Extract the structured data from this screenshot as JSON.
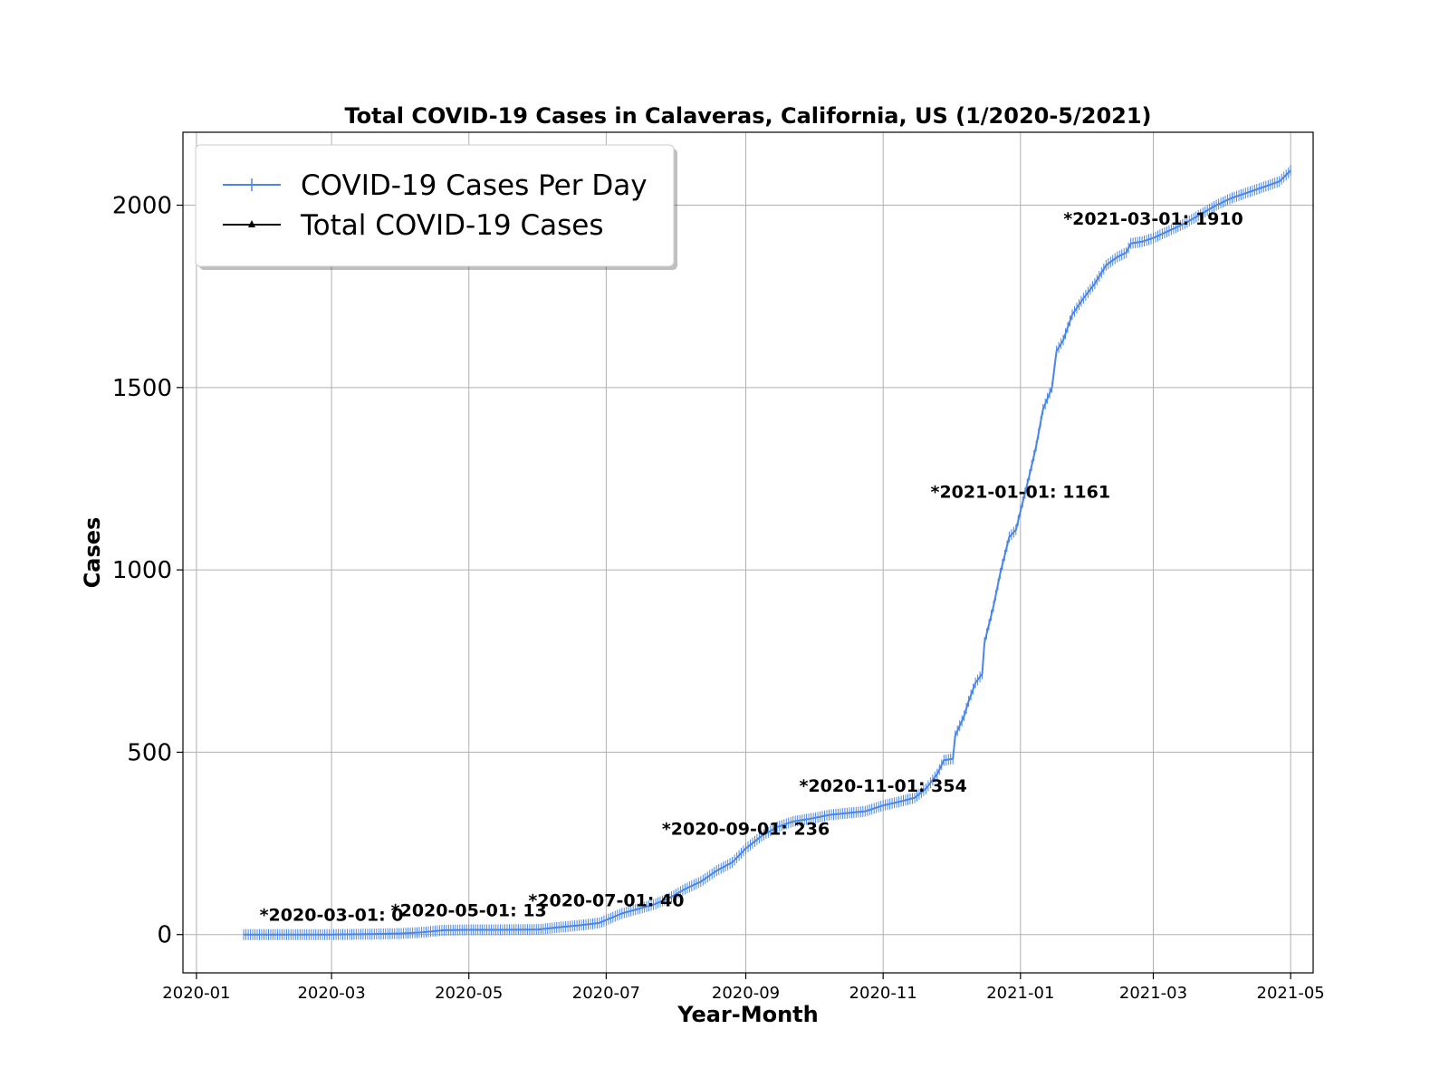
{
  "chart_data": {
    "type": "line",
    "title": "Total COVID-19 Cases in Calaveras, California, US (1/2020-5/2021)",
    "xlabel": "Year-Month",
    "ylabel": "Cases",
    "xlim": [
      "2019-12-26",
      "2021-05-11"
    ],
    "ylim": [
      -105,
      2200
    ],
    "grid": true,
    "legend_position": "top-left",
    "x_ticks": [
      "2020-01",
      "2020-03",
      "2020-05",
      "2020-07",
      "2020-09",
      "2020-11",
      "2021-01",
      "2021-03",
      "2021-05"
    ],
    "y_ticks": [
      0,
      500,
      1000,
      1500,
      2000
    ],
    "series": [
      {
        "name": "COVID-19 Cases Per Day",
        "color": "#4a86e8",
        "marker": "plus",
        "points": [
          [
            "2020-01-22",
            0
          ],
          [
            "2020-02-15",
            0
          ],
          [
            "2020-03-01",
            0
          ],
          [
            "2020-03-15",
            1
          ],
          [
            "2020-03-25",
            2
          ],
          [
            "2020-04-01",
            3
          ],
          [
            "2020-04-10",
            6
          ],
          [
            "2020-04-20",
            12
          ],
          [
            "2020-05-01",
            13
          ],
          [
            "2020-05-15",
            13
          ],
          [
            "2020-06-01",
            14
          ],
          [
            "2020-06-10",
            20
          ],
          [
            "2020-06-20",
            26
          ],
          [
            "2020-06-28",
            32
          ],
          [
            "2020-07-01",
            40
          ],
          [
            "2020-07-08",
            58
          ],
          [
            "2020-07-15",
            70
          ],
          [
            "2020-07-22",
            82
          ],
          [
            "2020-07-29",
            100
          ],
          [
            "2020-08-05",
            125
          ],
          [
            "2020-08-12",
            145
          ],
          [
            "2020-08-19",
            175
          ],
          [
            "2020-08-26",
            198
          ],
          [
            "2020-09-01",
            236
          ],
          [
            "2020-09-08",
            270
          ],
          [
            "2020-09-15",
            295
          ],
          [
            "2020-09-22",
            310
          ],
          [
            "2020-09-30",
            318
          ],
          [
            "2020-10-08",
            328
          ],
          [
            "2020-10-16",
            333
          ],
          [
            "2020-10-24",
            338
          ],
          [
            "2020-11-01",
            354
          ],
          [
            "2020-11-08",
            364
          ],
          [
            "2020-11-15",
            375
          ],
          [
            "2020-11-20",
            400
          ],
          [
            "2020-11-25",
            440
          ],
          [
            "2020-11-28",
            478
          ],
          [
            "2020-12-02",
            482
          ],
          [
            "2020-12-03",
            545
          ],
          [
            "2020-12-07",
            600
          ],
          [
            "2020-12-09",
            640
          ],
          [
            "2020-12-12",
            690
          ],
          [
            "2020-12-15",
            715
          ],
          [
            "2020-12-16",
            800
          ],
          [
            "2020-12-20",
            900
          ],
          [
            "2020-12-23",
            990
          ],
          [
            "2020-12-27",
            1090
          ],
          [
            "2020-12-30",
            1110
          ],
          [
            "2021-01-01",
            1161
          ],
          [
            "2021-01-05",
            1260
          ],
          [
            "2021-01-08",
            1340
          ],
          [
            "2021-01-11",
            1440
          ],
          [
            "2021-01-15",
            1500
          ],
          [
            "2021-01-17",
            1600
          ],
          [
            "2021-01-20",
            1630
          ],
          [
            "2021-01-24",
            1700
          ],
          [
            "2021-01-29",
            1745
          ],
          [
            "2021-02-03",
            1785
          ],
          [
            "2021-02-08",
            1835
          ],
          [
            "2021-02-13",
            1858
          ],
          [
            "2021-02-17",
            1870
          ],
          [
            "2021-02-19",
            1895
          ],
          [
            "2021-02-24",
            1900
          ],
          [
            "2021-03-01",
            1910
          ],
          [
            "2021-03-08",
            1930
          ],
          [
            "2021-03-15",
            1950
          ],
          [
            "2021-03-22",
            1975
          ],
          [
            "2021-03-29",
            2000
          ],
          [
            "2021-04-05",
            2020
          ],
          [
            "2021-04-12",
            2035
          ],
          [
            "2021-04-19",
            2050
          ],
          [
            "2021-04-26",
            2065
          ],
          [
            "2021-05-01",
            2095
          ]
        ]
      },
      {
        "name": "Total COVID-19 Cases",
        "color": "#000000",
        "marker": "triangle",
        "points": []
      }
    ],
    "annotations": [
      {
        "text": "*2020-03-01: 0",
        "x": "2020-03-01",
        "y": 0
      },
      {
        "text": "*2020-05-01: 13",
        "x": "2020-05-01",
        "y": 13
      },
      {
        "text": "*2020-07-01: 40",
        "x": "2020-07-01",
        "y": 40
      },
      {
        "text": "*2020-09-01: 236",
        "x": "2020-09-01",
        "y": 236
      },
      {
        "text": "*2020-11-01: 354",
        "x": "2020-11-01",
        "y": 354
      },
      {
        "text": "*2021-01-01: 1161",
        "x": "2021-01-01",
        "y": 1161
      },
      {
        "text": "*2021-03-01: 1910",
        "x": "2021-03-01",
        "y": 1910
      }
    ]
  }
}
